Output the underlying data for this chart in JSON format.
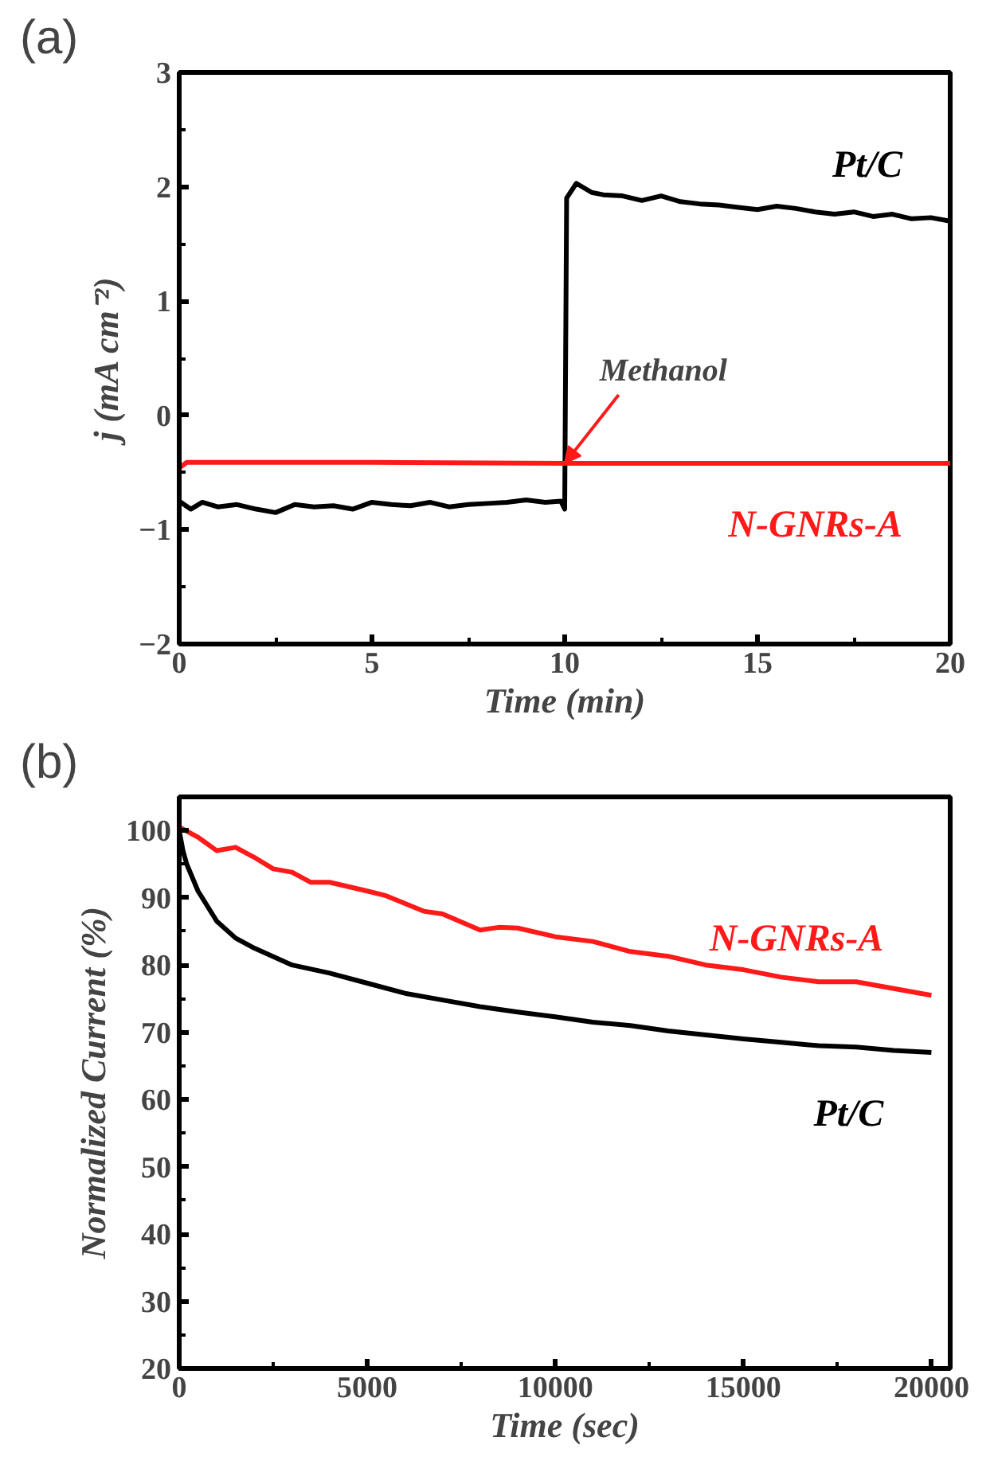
{
  "chart_data": [
    {
      "type": "line",
      "title": "(a)",
      "xlabel": "Time (min)",
      "ylabel": "j (mA cm⁻²)",
      "xlim": [
        0,
        20
      ],
      "ylim": [
        -2,
        3
      ],
      "xticks": [
        0,
        5,
        10,
        15,
        20
      ],
      "yticks": [
        -2,
        -1,
        0,
        1,
        2,
        3
      ],
      "grid": false,
      "annotations": [
        {
          "text": "Methanol",
          "x": 10,
          "y": -0.42
        }
      ],
      "series": [
        {
          "name": "Pt/C",
          "color": "#000000",
          "x": [
            0,
            0.3,
            0.6,
            1,
            1.5,
            2,
            2.5,
            3,
            3.5,
            4,
            4.5,
            5,
            5.5,
            6,
            6.5,
            7,
            7.5,
            8,
            8.5,
            9,
            9.5,
            9.9,
            10,
            10.05,
            10.3,
            10.7,
            11,
            11.5,
            12,
            12.5,
            13,
            13.5,
            14,
            14.5,
            15,
            15.5,
            16,
            16.5,
            17,
            17.5,
            18,
            18.5,
            19,
            19.5,
            20
          ],
          "values": [
            -0.75,
            -0.82,
            -0.76,
            -0.8,
            -0.78,
            -0.82,
            -0.85,
            -0.78,
            -0.8,
            -0.79,
            -0.82,
            -0.76,
            -0.78,
            -0.79,
            -0.76,
            -0.8,
            -0.78,
            -0.77,
            -0.76,
            -0.74,
            -0.76,
            -0.75,
            -0.82,
            1.9,
            2.03,
            1.95,
            1.93,
            1.92,
            1.88,
            1.92,
            1.87,
            1.85,
            1.84,
            1.82,
            1.8,
            1.83,
            1.81,
            1.78,
            1.76,
            1.78,
            1.74,
            1.76,
            1.72,
            1.73,
            1.7
          ]
        },
        {
          "name": "N-GNRs-A",
          "color": "#ff1a1a",
          "x": [
            0,
            0.2,
            5,
            10,
            15,
            20
          ],
          "values": [
            -0.46,
            -0.41,
            -0.41,
            -0.42,
            -0.42,
            -0.42
          ]
        }
      ]
    },
    {
      "type": "line",
      "title": "(b)",
      "xlabel": "Time (sec)",
      "ylabel": "Normalized Current (%)",
      "xlim": [
        0,
        20500
      ],
      "ylim": [
        20,
        105
      ],
      "xticks": [
        0,
        5000,
        10000,
        15000,
        20000
      ],
      "yticks": [
        20,
        30,
        40,
        50,
        60,
        70,
        80,
        90,
        100
      ],
      "grid": false,
      "series": [
        {
          "name": "N-GNRs-A",
          "color": "#ff1a1a",
          "x": [
            0,
            500,
            1000,
            1500,
            2000,
            2500,
            3000,
            3500,
            4000,
            5000,
            5500,
            6500,
            7000,
            8000,
            8500,
            9000,
            10000,
            11000,
            12000,
            13000,
            14000,
            15000,
            16000,
            17000,
            18000,
            19000,
            20000
          ],
          "values": [
            100.5,
            99,
            97,
            97.5,
            96,
            94.3,
            93.8,
            92.3,
            92.3,
            91,
            90.3,
            88,
            87.6,
            85.2,
            85.6,
            85.5,
            84.2,
            83.5,
            82,
            81.3,
            80,
            79.3,
            78.2,
            77.5,
            77.5,
            76.5,
            75.5
          ]
        },
        {
          "name": "Pt/C",
          "color": "#000000",
          "x": [
            0,
            100,
            200,
            500,
            1000,
            1500,
            2000,
            3000,
            4000,
            5000,
            6000,
            7000,
            8000,
            9000,
            10000,
            11000,
            12000,
            13000,
            14000,
            15000,
            16000,
            17000,
            18000,
            19000,
            20000
          ],
          "values": [
            100,
            97,
            95,
            91,
            86.5,
            84,
            82.5,
            80,
            78.8,
            77.3,
            75.8,
            74.8,
            73.8,
            73,
            72.3,
            71.5,
            71,
            70.2,
            69.6,
            69,
            68.5,
            68,
            67.8,
            67.3,
            67
          ]
        }
      ]
    }
  ]
}
